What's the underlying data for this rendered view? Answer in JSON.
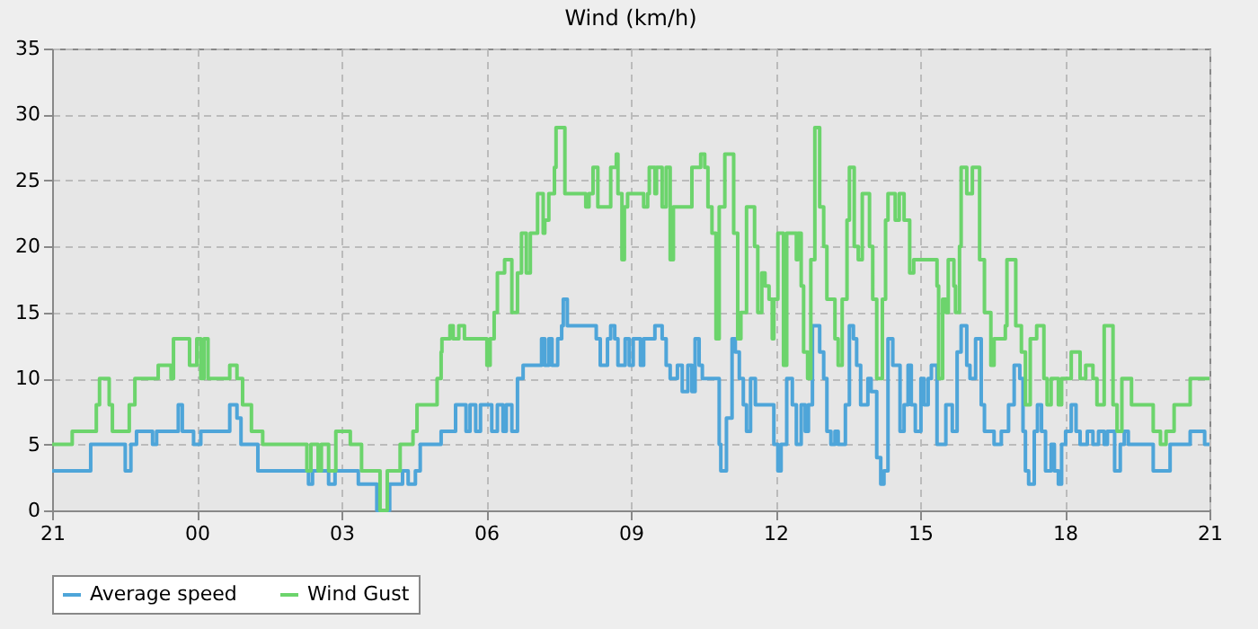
{
  "chart_data": {
    "type": "step",
    "title": "Wind (km/h)",
    "xlim": [
      "2000-01-01T21:00",
      "2000-01-02T21:00"
    ],
    "xticks": [
      {
        "value": "2000-01-01T21:00",
        "label": "21"
      },
      {
        "value": "2000-01-02T00:00",
        "label": "00"
      },
      {
        "value": "2000-01-02T03:00",
        "label": "03"
      },
      {
        "value": "2000-01-02T06:00",
        "label": "06"
      },
      {
        "value": "2000-01-02T09:00",
        "label": "09"
      },
      {
        "value": "2000-01-02T12:00",
        "label": "12"
      },
      {
        "value": "2000-01-02T15:00",
        "label": "15"
      },
      {
        "value": "2000-01-02T18:00",
        "label": "18"
      },
      {
        "value": "2000-01-02T21:00",
        "label": "21"
      }
    ],
    "ylim": [
      0,
      35
    ],
    "yticks": [
      0,
      5,
      10,
      15,
      20,
      25,
      30,
      35
    ],
    "grid": true,
    "legend": "bottom",
    "line_style": "solid",
    "marker": "none",
    "series": [
      {
        "name": "Average speed",
        "color": "#4ea5d9",
        "x": [
          "2000-01-01T21:00",
          "2000-01-01T21:48",
          "2000-01-01T22:31",
          "2000-01-01T22:38",
          "2000-01-01T22:45",
          "2000-01-01T23:05",
          "2000-01-01T23:10",
          "2000-01-01T23:37",
          "2000-01-01T23:42",
          "2000-01-01T23:56",
          "2000-01-02T00:05",
          "2000-01-02T00:41",
          "2000-01-02T00:50",
          "2000-01-02T00:55",
          "2000-01-02T01:16",
          "2000-01-02T02:19",
          "2000-01-02T02:24",
          "2000-01-02T02:44",
          "2000-01-02T02:52",
          "2000-01-02T03:21",
          "2000-01-02T03:44",
          "2000-01-02T04:00",
          "2000-01-02T04:16",
          "2000-01-02T04:23",
          "2000-01-02T04:32",
          "2000-01-02T04:38",
          "2000-01-02T05:04",
          "2000-01-02T05:22",
          "2000-01-02T05:35",
          "2000-01-02T05:40",
          "2000-01-02T05:47",
          "2000-01-02T05:53",
          "2000-01-02T06:07",
          "2000-01-02T06:14",
          "2000-01-02T06:21",
          "2000-01-02T06:25",
          "2000-01-02T06:32",
          "2000-01-02T06:39",
          "2000-01-02T06:46",
          "2000-01-02T07:09",
          "2000-01-02T07:13",
          "2000-01-02T07:18",
          "2000-01-02T07:22",
          "2000-01-02T07:29",
          "2000-01-02T07:34",
          "2000-01-02T07:36",
          "2000-01-02T07:41",
          "2000-01-02T08:17",
          "2000-01-02T08:22",
          "2000-01-02T08:31",
          "2000-01-02T08:35",
          "2000-01-02T08:40",
          "2000-01-02T08:44",
          "2000-01-02T08:53",
          "2000-01-02T08:58",
          "2000-01-02T09:03",
          "2000-01-02T09:12",
          "2000-01-02T09:16",
          "2000-01-02T09:30",
          "2000-01-02T09:39",
          "2000-01-02T09:44",
          "2000-01-02T09:49",
          "2000-01-02T09:58",
          "2000-01-02T10:04",
          "2000-01-02T10:11",
          "2000-01-02T10:16",
          "2000-01-02T10:20",
          "2000-01-02T10:25",
          "2000-01-02T10:29",
          "2000-01-02T10:50",
          "2000-01-02T10:52",
          "2000-01-02T10:59",
          "2000-01-02T11:06",
          "2000-01-02T11:10",
          "2000-01-02T11:15",
          "2000-01-02T11:20",
          "2000-01-02T11:24",
          "2000-01-02T11:29",
          "2000-01-02T11:35",
          "2000-01-02T11:58",
          "2000-01-02T12:03",
          "2000-01-02T12:07",
          "2000-01-02T12:14",
          "2000-01-02T12:21",
          "2000-01-02T12:26",
          "2000-01-02T12:32",
          "2000-01-02T12:37",
          "2000-01-02T12:41",
          "2000-01-02T12:46",
          "2000-01-02T12:55",
          "2000-01-02T13:00",
          "2000-01-02T13:04",
          "2000-01-02T13:09",
          "2000-01-02T13:14",
          "2000-01-02T13:18",
          "2000-01-02T13:27",
          "2000-01-02T13:32",
          "2000-01-02T13:37",
          "2000-01-02T13:41",
          "2000-01-02T13:46",
          "2000-01-02T13:55",
          "2000-01-02T13:59",
          "2000-01-02T14:06",
          "2000-01-02T14:11",
          "2000-01-02T14:15",
          "2000-01-02T14:20",
          "2000-01-02T14:26",
          "2000-01-02T14:35",
          "2000-01-02T14:40",
          "2000-01-02T14:45",
          "2000-01-02T14:49",
          "2000-01-02T14:54",
          "2000-01-02T15:01",
          "2000-01-02T15:05",
          "2000-01-02T15:10",
          "2000-01-02T15:14",
          "2000-01-02T15:21",
          "2000-01-02T15:32",
          "2000-01-02T15:40",
          "2000-01-02T15:46",
          "2000-01-02T15:51",
          "2000-01-02T15:58",
          "2000-01-02T16:02",
          "2000-01-02T16:09",
          "2000-01-02T16:16",
          "2000-01-02T16:20",
          "2000-01-02T16:32",
          "2000-01-02T16:41",
          "2000-01-02T16:50",
          "2000-01-02T16:57",
          "2000-01-02T17:04",
          "2000-01-02T17:08",
          "2000-01-02T17:11",
          "2000-01-02T17:15",
          "2000-01-02T17:22",
          "2000-01-02T17:26",
          "2000-01-02T17:31",
          "2000-01-02T17:36",
          "2000-01-02T17:43",
          "2000-01-02T17:47",
          "2000-01-02T17:52",
          "2000-01-02T17:56",
          "2000-01-02T18:01",
          "2000-01-02T18:08",
          "2000-01-02T18:14",
          "2000-01-02T18:19",
          "2000-01-02T18:28",
          "2000-01-02T18:35",
          "2000-01-02T18:42",
          "2000-01-02T18:49",
          "2000-01-02T18:53",
          "2000-01-02T19:02",
          "2000-01-02T19:09",
          "2000-01-02T19:14",
          "2000-01-02T19:19",
          "2000-01-02T19:50",
          "2000-01-02T20:11",
          "2000-01-02T20:36",
          "2000-01-02T20:54",
          "2000-01-02T21:00"
        ],
        "values": [
          3,
          5,
          3,
          5,
          6,
          5,
          6,
          8,
          6,
          5,
          6,
          8,
          7,
          5,
          3,
          2,
          3,
          2,
          3,
          2,
          0,
          2,
          3,
          2,
          3,
          5,
          6,
          8,
          6,
          8,
          6,
          8,
          6,
          8,
          6,
          8,
          6,
          10,
          11,
          13,
          11,
          13,
          11,
          13,
          14,
          16,
          14,
          13,
          11,
          13,
          14,
          13,
          11,
          13,
          11,
          13,
          11,
          13,
          14,
          13,
          11,
          10,
          11,
          9,
          11,
          9,
          13,
          11,
          10,
          5,
          3,
          7,
          13,
          12,
          10,
          8,
          6,
          10,
          8,
          5,
          3,
          5,
          10,
          8,
          5,
          8,
          6,
          8,
          14,
          12,
          10,
          6,
          5,
          6,
          5,
          8,
          14,
          13,
          11,
          8,
          10,
          9,
          4,
          2,
          3,
          13,
          11,
          6,
          8,
          11,
          8,
          6,
          10,
          8,
          10,
          11,
          5,
          8,
          6,
          12,
          14,
          11,
          10,
          13,
          8,
          6,
          5,
          6,
          8,
          11,
          10,
          6,
          3,
          2,
          6,
          8,
          6,
          3,
          5,
          3,
          2,
          5,
          6,
          8,
          6,
          5,
          6,
          5,
          6,
          5,
          6,
          3,
          5,
          6,
          5,
          3,
          5,
          6,
          5,
          5
        ]
      },
      {
        "name": "Wind Gust",
        "color": "#6cd46c",
        "x": [
          "2000-01-01T21:00",
          "2000-01-01T21:25",
          "2000-01-01T21:55",
          "2000-01-01T21:59",
          "2000-01-01T22:11",
          "2000-01-01T22:15",
          "2000-01-01T22:36",
          "2000-01-01T22:43",
          "2000-01-01T23:12",
          "2000-01-01T23:28",
          "2000-01-01T23:31",
          "2000-01-01T23:51",
          "2000-01-02T00:00",
          "2000-01-02T00:05",
          "2000-01-02T00:09",
          "2000-01-02T00:14",
          "2000-01-02T00:41",
          "2000-01-02T00:50",
          "2000-01-02T00:57",
          "2000-01-02T01:08",
          "2000-01-02T01:22",
          "2000-01-02T02:17",
          "2000-01-02T02:22",
          "2000-01-02T02:31",
          "2000-01-02T02:35",
          "2000-01-02T02:44",
          "2000-01-02T02:53",
          "2000-01-02T03:11",
          "2000-01-02T03:25",
          "2000-01-02T03:48",
          "2000-01-02T03:57",
          "2000-01-02T04:13",
          "2000-01-02T04:29",
          "2000-01-02T04:34",
          "2000-01-02T04:59",
          "2000-01-02T05:04",
          "2000-01-02T05:05",
          "2000-01-02T05:15",
          "2000-01-02T05:19",
          "2000-01-02T05:26",
          "2000-01-02T05:33",
          "2000-01-02T06:01",
          "2000-01-02T06:05",
          "2000-01-02T06:10",
          "2000-01-02T06:14",
          "2000-01-02T06:23",
          "2000-01-02T06:32",
          "2000-01-02T06:39",
          "2000-01-02T06:44",
          "2000-01-02T06:50",
          "2000-01-02T06:55",
          "2000-01-02T07:04",
          "2000-01-02T07:11",
          "2000-01-02T07:13",
          "2000-01-02T07:18",
          "2000-01-02T07:25",
          "2000-01-02T07:27",
          "2000-01-02T07:38",
          "2000-01-02T08:04",
          "2000-01-02T08:08",
          "2000-01-02T08:13",
          "2000-01-02T08:19",
          "2000-01-02T08:35",
          "2000-01-02T08:42",
          "2000-01-02T08:44",
          "2000-01-02T08:49",
          "2000-01-02T08:52",
          "2000-01-02T08:56",
          "2000-01-02T09:16",
          "2000-01-02T09:21",
          "2000-01-02T09:23",
          "2000-01-02T09:30",
          "2000-01-02T09:32",
          "2000-01-02T09:39",
          "2000-01-02T09:44",
          "2000-01-02T09:49",
          "2000-01-02T09:53",
          "2000-01-02T10:16",
          "2000-01-02T10:27",
          "2000-01-02T10:32",
          "2000-01-02T10:36",
          "2000-01-02T10:41",
          "2000-01-02T10:46",
          "2000-01-02T10:50",
          "2000-01-02T10:57",
          "2000-01-02T11:08",
          "2000-01-02T11:13",
          "2000-01-02T11:17",
          "2000-01-02T11:24",
          "2000-01-02T11:34",
          "2000-01-02T11:38",
          "2000-01-02T11:43",
          "2000-01-02T11:47",
          "2000-01-02T11:52",
          "2000-01-02T11:56",
          "2000-01-02T11:58",
          "2000-01-02T12:03",
          "2000-01-02T12:10",
          "2000-01-02T12:14",
          "2000-01-02T12:26",
          "2000-01-02T12:28",
          "2000-01-02T12:32",
          "2000-01-02T12:35",
          "2000-01-02T12:40",
          "2000-01-02T12:44",
          "2000-01-02T12:49",
          "2000-01-02T12:55",
          "2000-01-02T13:00",
          "2000-01-02T13:04",
          "2000-01-02T13:14",
          "2000-01-02T13:18",
          "2000-01-02T13:23",
          "2000-01-02T13:29",
          "2000-01-02T13:32",
          "2000-01-02T13:38",
          "2000-01-02T13:43",
          "2000-01-02T13:48",
          "2000-01-02T13:57",
          "2000-01-02T14:01",
          "2000-01-02T14:06",
          "2000-01-02T14:13",
          "2000-01-02T14:17",
          "2000-01-02T14:20",
          "2000-01-02T14:29",
          "2000-01-02T14:34",
          "2000-01-02T14:40",
          "2000-01-02T14:47",
          "2000-01-02T14:52",
          "2000-01-02T15:21",
          "2000-01-02T15:23",
          "2000-01-02T15:28",
          "2000-01-02T15:32",
          "2000-01-02T15:35",
          "2000-01-02T15:42",
          "2000-01-02T15:44",
          "2000-01-02T15:49",
          "2000-01-02T15:51",
          "2000-01-02T15:58",
          "2000-01-02T16:05",
          "2000-01-02T16:14",
          "2000-01-02T16:20",
          "2000-01-02T16:28",
          "2000-01-02T16:32",
          "2000-01-02T16:46",
          "2000-01-02T16:48",
          "2000-01-02T16:59",
          "2000-01-02T17:06",
          "2000-01-02T17:11",
          "2000-01-02T17:17",
          "2000-01-02T17:25",
          "2000-01-02T17:34",
          "2000-01-02T17:38",
          "2000-01-02T17:43",
          "2000-01-02T17:52",
          "2000-01-02T17:56",
          "2000-01-02T18:08",
          "2000-01-02T18:19",
          "2000-01-02T18:26",
          "2000-01-02T18:35",
          "2000-01-02T18:40",
          "2000-01-02T18:49",
          "2000-01-02T19:00",
          "2000-01-02T19:05",
          "2000-01-02T19:11",
          "2000-01-02T19:23",
          "2000-01-02T19:50",
          "2000-01-02T19:59",
          "2000-01-02T20:06",
          "2000-01-02T20:16",
          "2000-01-02T20:36",
          "2000-01-02T21:00"
        ],
        "values": [
          5,
          6,
          8,
          10,
          8,
          6,
          8,
          10,
          11,
          10,
          13,
          11,
          13,
          10,
          13,
          10,
          11,
          10,
          8,
          6,
          5,
          3,
          5,
          3,
          5,
          3,
          6,
          5,
          3,
          0,
          3,
          5,
          6,
          8,
          10,
          12,
          13,
          14,
          13,
          14,
          13,
          11,
          13,
          15,
          18,
          19,
          15,
          18,
          21,
          18,
          21,
          24,
          21,
          22,
          24,
          26,
          29,
          24,
          23,
          24,
          26,
          23,
          26,
          27,
          24,
          19,
          23,
          24,
          23,
          24,
          26,
          24,
          26,
          23,
          26,
          19,
          23,
          26,
          27,
          26,
          23,
          21,
          13,
          23,
          27,
          21,
          13,
          15,
          23,
          20,
          15,
          18,
          17,
          16,
          13,
          16,
          21,
          11,
          21,
          19,
          21,
          17,
          12,
          10,
          19,
          29,
          23,
          20,
          16,
          13,
          11,
          16,
          22,
          26,
          20,
          19,
          24,
          20,
          16,
          10,
          16,
          22,
          24,
          22,
          24,
          22,
          18,
          19,
          17,
          10,
          16,
          15,
          19,
          17,
          15,
          20,
          26,
          24,
          26,
          19,
          15,
          11,
          13,
          14,
          19,
          14,
          12,
          8,
          13,
          14,
          10,
          8,
          10,
          8,
          10,
          12,
          10,
          11,
          10,
          8,
          14,
          8,
          6,
          10,
          8,
          6,
          5,
          6,
          8,
          10,
          10
        ]
      }
    ]
  }
}
